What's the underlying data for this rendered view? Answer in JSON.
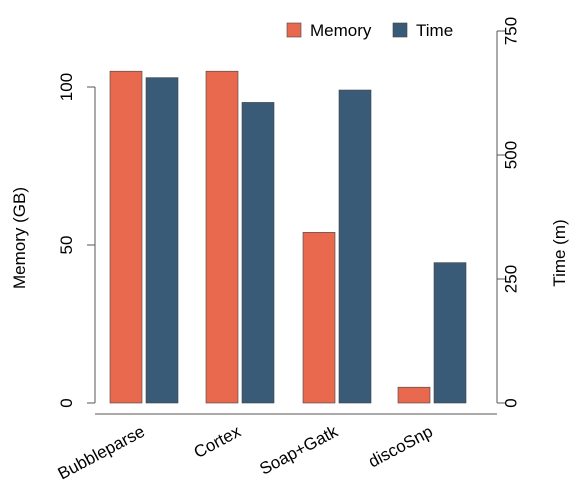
{
  "chart_data": {
    "type": "bar",
    "categories": [
      "Bubbleparse",
      "Cortex",
      "Soap+Gatk",
      "discoSnp"
    ],
    "series": [
      {
        "name": "Memory",
        "axis": "left",
        "color": "#e8694e",
        "values": [
          105,
          105,
          54,
          5
        ]
      },
      {
        "name": "Time",
        "axis": "right",
        "color": "#3a5b78",
        "values": [
          656,
          606,
          631,
          283
        ]
      }
    ],
    "ylabel": "Memory (GB)",
    "y2label": "Time (m)",
    "ylim": [
      0,
      105
    ],
    "y2lim": [
      0,
      750
    ],
    "yticks": [
      0,
      50,
      100
    ],
    "y2ticks": [
      0,
      250,
      500,
      750
    ],
    "grid": false,
    "legend_position": "top-right"
  }
}
